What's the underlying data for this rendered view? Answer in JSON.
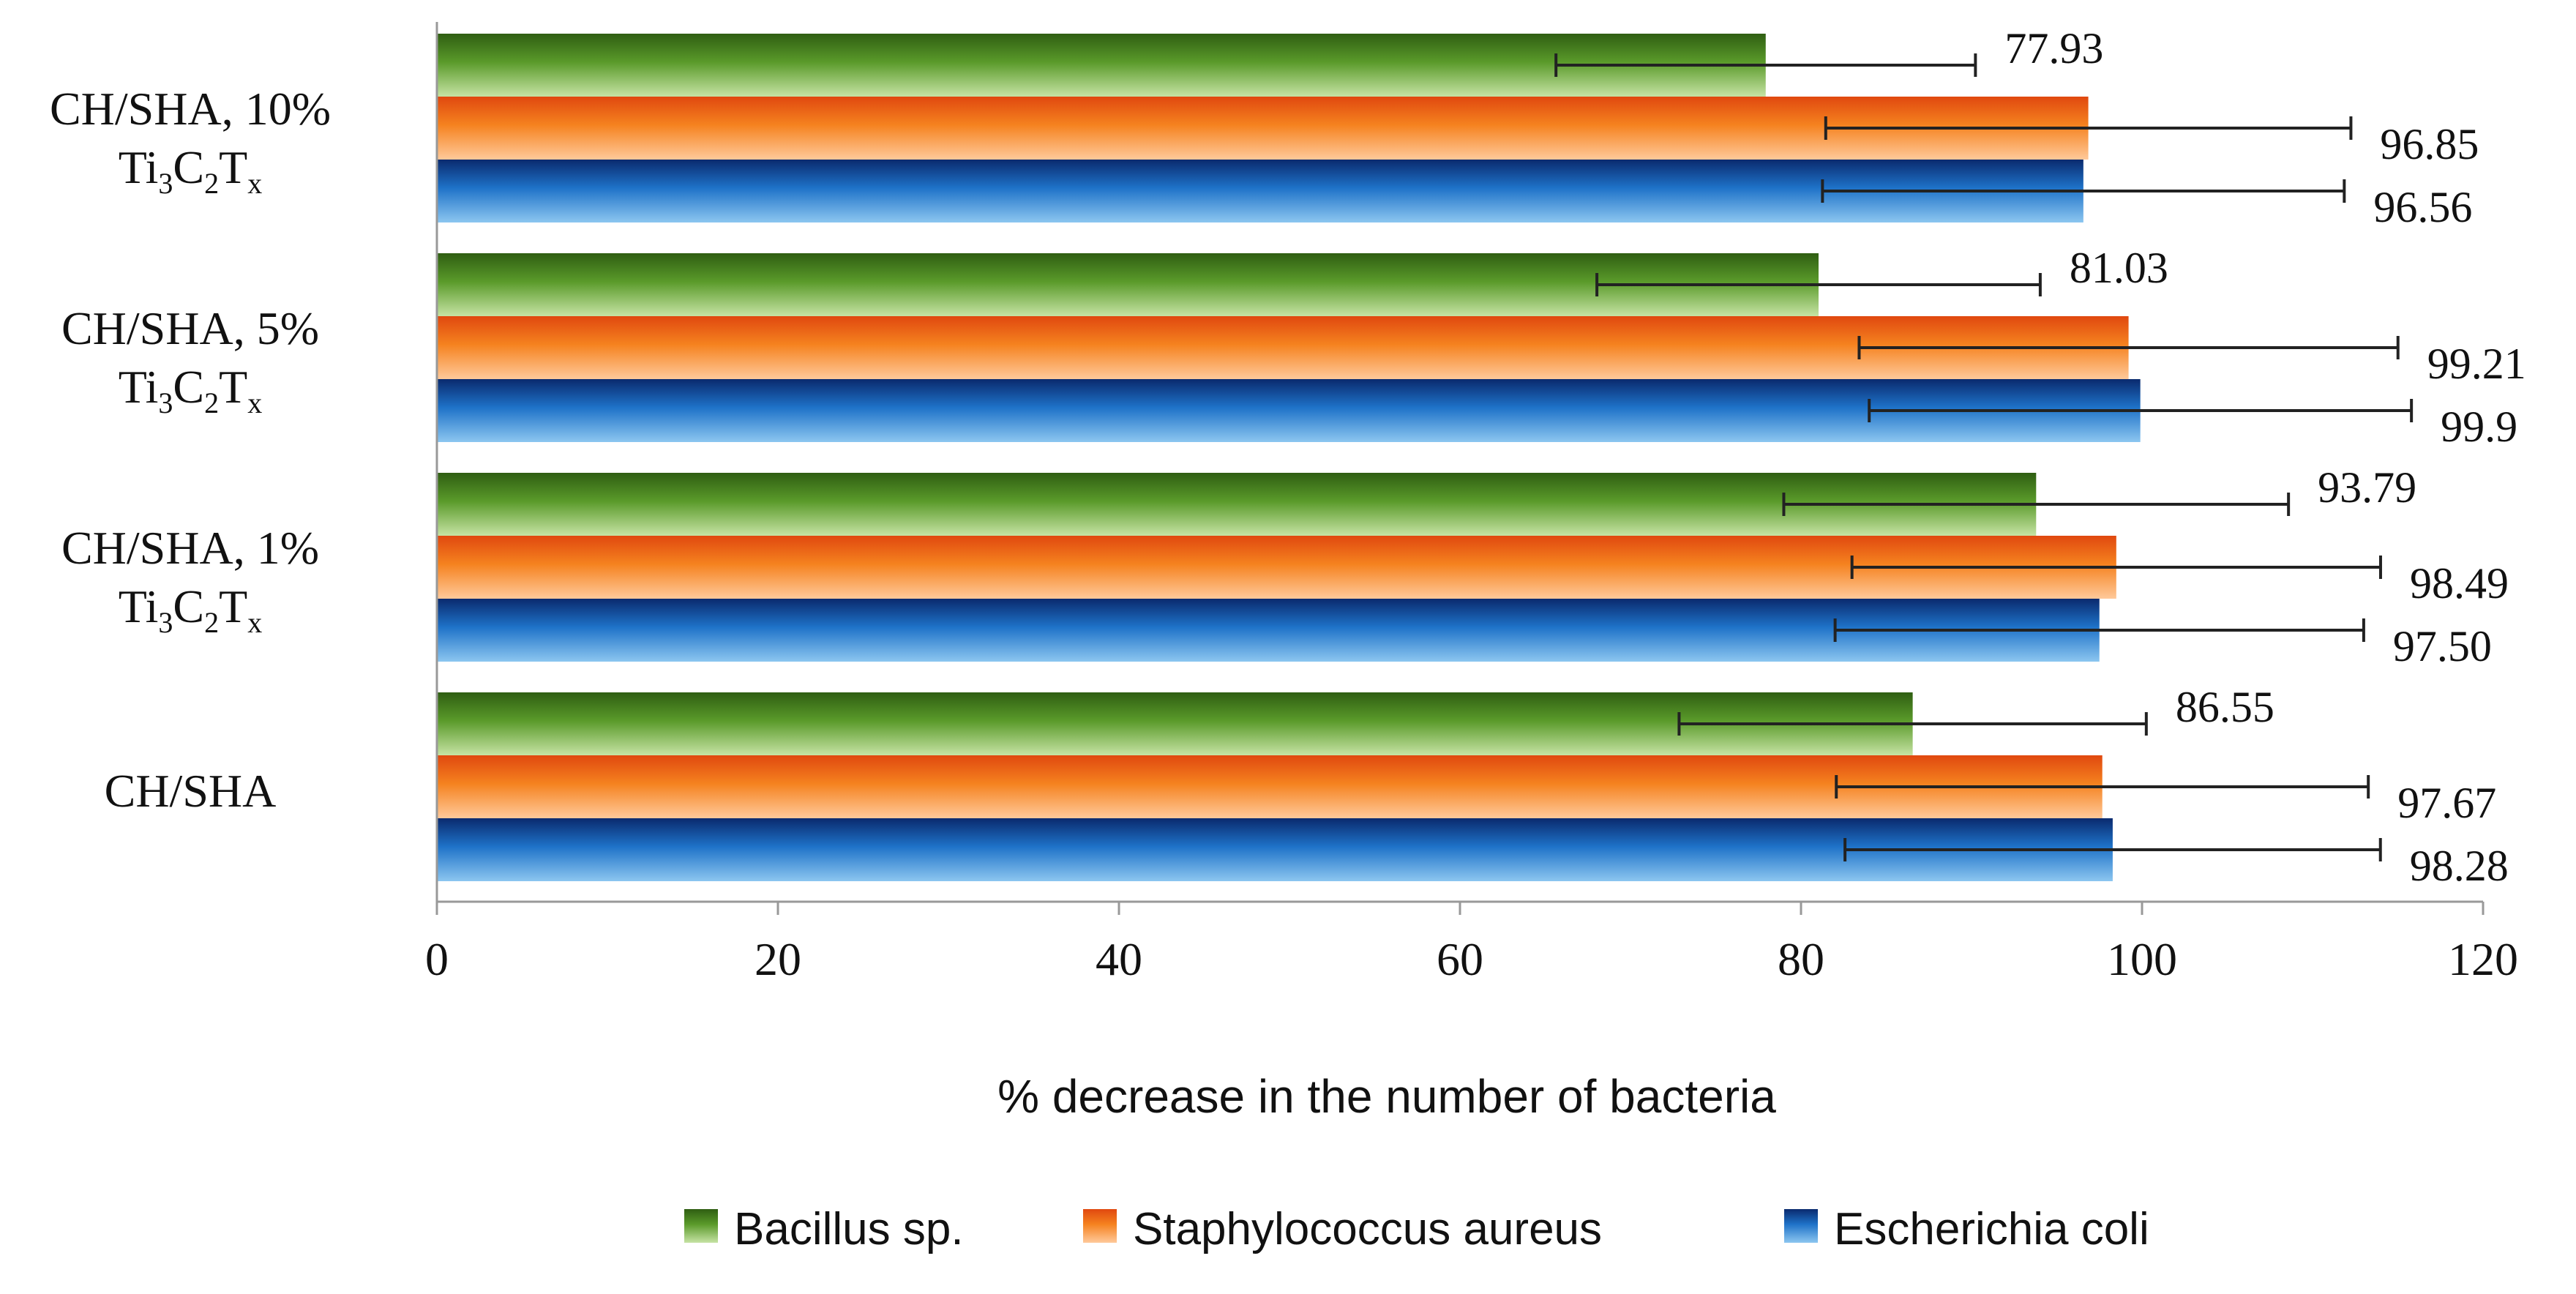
{
  "chart_data": {
    "type": "bar",
    "orientation": "horizontal",
    "title": "",
    "xlabel": "% decrease in the number of bacteria",
    "ylabel": "",
    "xlim": [
      0,
      120
    ],
    "xticks": [
      0,
      20,
      40,
      60,
      80,
      100,
      120
    ],
    "categories": [
      {
        "line1": "CH/SHA, 10%",
        "line2": "Ti3C2Tx",
        "has_formula": true
      },
      {
        "line1": "CH/SHA, 5%",
        "line2": "Ti3C2Tx",
        "has_formula": true
      },
      {
        "line1": "CH/SHA, 1%",
        "line2": "Ti3C2Tx",
        "has_formula": true
      },
      {
        "line1": "CH/SHA",
        "line2": "",
        "has_formula": false
      }
    ],
    "formula": {
      "base1": "Ti",
      "sub1": "3",
      "base2": "C",
      "sub2": "2",
      "base3": "T",
      "sub3": "x"
    },
    "series": [
      {
        "name": "Bacillus sp.",
        "colors": {
          "dark": "#2f5e12",
          "mid": "#5a9a2a",
          "light": "#c6e3a4"
        },
        "values": [
          77.93,
          81.03,
          93.79,
          86.55
        ],
        "labels": [
          "77.93",
          "81.03",
          "93.79",
          "86.55"
        ],
        "errors": [
          12.3,
          13.0,
          14.8,
          13.7
        ]
      },
      {
        "name": "Staphylococcus aureus",
        "colors": {
          "dark": "#e0480f",
          "mid": "#f5821f",
          "light": "#ffc99a"
        },
        "values": [
          96.85,
          99.21,
          98.49,
          97.67
        ],
        "labels": [
          "96.85",
          "99.21",
          "98.49",
          "97.67"
        ],
        "errors": [
          15.4,
          15.8,
          15.5,
          15.6
        ]
      },
      {
        "name": "Escherichia coli",
        "colors": {
          "dark": "#0a2a6e",
          "mid": "#1e72c8",
          "light": "#8cc6f0"
        },
        "values": [
          96.56,
          99.9,
          97.5,
          98.28
        ],
        "labels": [
          "96.56",
          "99.9",
          "97.50",
          "98.28"
        ],
        "errors": [
          15.3,
          15.9,
          15.5,
          15.7
        ]
      }
    ],
    "legend_position": "bottom-center"
  }
}
